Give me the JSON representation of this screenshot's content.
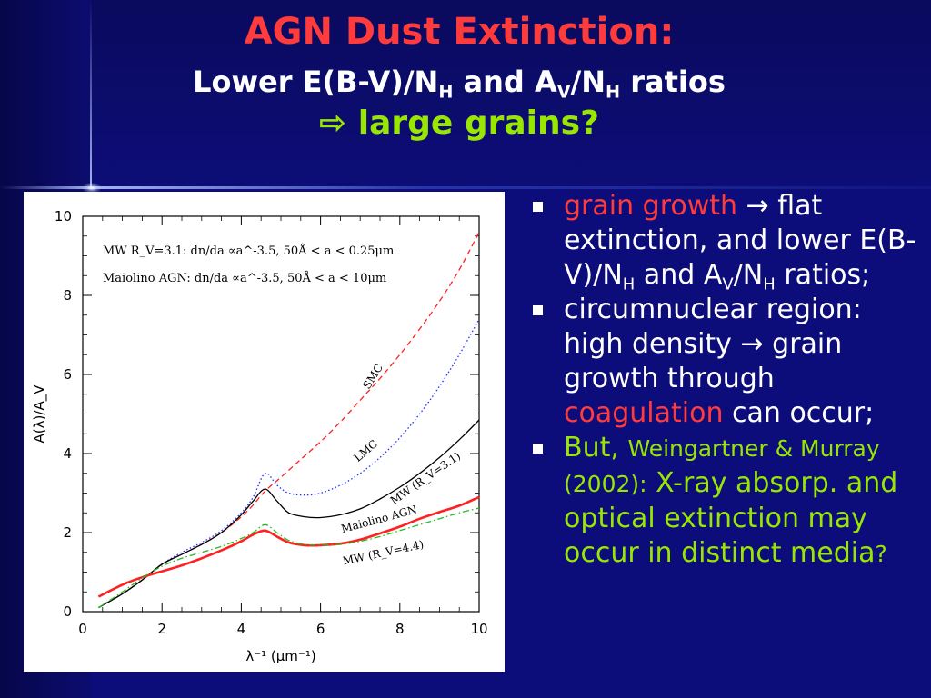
{
  "slide": {
    "title_line1": "AGN Dust Extinction:",
    "title_line2": {
      "a": "Lower E(B-V)/N",
      "a_sub": "H",
      "b": " and A",
      "b_sub": "V",
      "c": "/N",
      "c_sub": "H",
      "d": " ratios"
    },
    "title_line3": {
      "arrow": "⇨",
      "text": "large grains?"
    }
  },
  "bullets": [
    {
      "parts": [
        {
          "t": "grain growth",
          "c": "red"
        },
        {
          "t": " → flat extinction, and lower E(B-V)/N"
        },
        {
          "t": "H",
          "sub": true
        },
        {
          "t": " and A"
        },
        {
          "t": "V",
          "sub": true
        },
        {
          "t": "/N"
        },
        {
          "t": "H",
          "sub": true
        },
        {
          "t": " ratios;"
        }
      ]
    },
    {
      "parts": [
        {
          "t": "circumnuclear region: high density → grain growth through "
        },
        {
          "t": "coagulation",
          "c": "red"
        },
        {
          "t": " can occur;"
        }
      ]
    },
    {
      "parts": [
        {
          "t": "But, ",
          "c": "green"
        },
        {
          "t": "Weingartner & Murray (2002):",
          "c": "green",
          "small": true
        },
        {
          "t": " X-ray absorp. and optical extinction may occur in distinct media",
          "c": "green"
        },
        {
          "t": "?",
          "c": "green",
          "small": true
        }
      ]
    }
  ],
  "chart_data": {
    "type": "line",
    "xlabel": "λ⁻¹   (μm⁻¹)",
    "ylabel": "A(λ)/A_V",
    "xlim": [
      0,
      10
    ],
    "ylim": [
      0,
      10
    ],
    "xticks": [
      0,
      2,
      4,
      6,
      8,
      10
    ],
    "yticks": [
      0,
      2,
      4,
      6,
      8,
      10
    ],
    "legend": [
      "MW R_V=3.1: dn/da ∝a^-3.5, 50Å < a < 0.25μm",
      "Maiolino AGN: dn/da ∝a^-3.5, 50Å < a < 10μm"
    ],
    "series": [
      {
        "name": "SMC",
        "color": "#ff2020",
        "style": "dashed",
        "x": [
          0.4,
          1,
          1.5,
          2,
          2.5,
          3,
          3.5,
          4,
          4.3,
          4.6,
          5,
          5.5,
          6,
          6.5,
          7,
          7.5,
          8,
          8.5,
          9,
          9.5,
          10
        ],
        "y": [
          0.1,
          0.45,
          0.8,
          1.2,
          1.45,
          1.7,
          2.0,
          2.4,
          2.7,
          3.05,
          3.4,
          3.85,
          4.3,
          4.8,
          5.35,
          5.9,
          6.5,
          7.15,
          7.85,
          8.65,
          9.6
        ]
      },
      {
        "name": "LMC",
        "color": "#2030ff",
        "style": "dotted",
        "x": [
          0.4,
          1,
          1.5,
          2,
          2.5,
          3,
          3.5,
          4,
          4.3,
          4.6,
          4.9,
          5.2,
          5.6,
          6,
          6.5,
          7,
          7.5,
          8,
          8.5,
          9,
          9.5,
          10
        ],
        "y": [
          0.1,
          0.45,
          0.8,
          1.2,
          1.5,
          1.75,
          2.05,
          2.5,
          2.9,
          3.5,
          3.2,
          3.0,
          2.95,
          3.0,
          3.2,
          3.5,
          3.9,
          4.4,
          5.0,
          5.7,
          6.5,
          7.4
        ]
      },
      {
        "name": "MW (R_V=3.1)",
        "color": "#000000",
        "style": "solid",
        "x": [
          0.4,
          1,
          1.5,
          2,
          2.5,
          3,
          3.5,
          4,
          4.3,
          4.6,
          4.9,
          5.2,
          5.6,
          6,
          6.5,
          7,
          7.5,
          8,
          8.5,
          9,
          9.5,
          10
        ],
        "y": [
          0.1,
          0.45,
          0.8,
          1.2,
          1.45,
          1.7,
          2.0,
          2.45,
          2.8,
          3.1,
          2.8,
          2.5,
          2.4,
          2.38,
          2.45,
          2.6,
          2.85,
          3.15,
          3.5,
          3.9,
          4.35,
          4.85
        ]
      },
      {
        "name": "Maiolino AGN",
        "color": "#ff2020",
        "style": "solid",
        "x": [
          0.4,
          1,
          1.5,
          2,
          2.5,
          3,
          3.5,
          4,
          4.3,
          4.6,
          4.9,
          5.2,
          5.6,
          6,
          6.5,
          7,
          7.5,
          8,
          8.5,
          9,
          9.5,
          10
        ],
        "y": [
          0.38,
          0.68,
          0.87,
          1.02,
          1.17,
          1.35,
          1.55,
          1.78,
          1.95,
          2.05,
          1.9,
          1.75,
          1.68,
          1.68,
          1.72,
          1.82,
          1.98,
          2.15,
          2.35,
          2.52,
          2.68,
          2.9
        ]
      },
      {
        "name": "MW (R_V=4.4)",
        "color": "#22bb22",
        "style": "dashdot",
        "x": [
          0.4,
          1,
          1.5,
          2,
          2.5,
          3,
          3.5,
          4,
          4.3,
          4.6,
          4.9,
          5.2,
          5.6,
          6,
          6.5,
          7,
          7.5,
          8,
          8.5,
          9,
          9.5,
          10
        ],
        "y": [
          0.1,
          0.5,
          0.85,
          1.15,
          1.35,
          1.5,
          1.65,
          1.85,
          2.0,
          2.2,
          2.0,
          1.8,
          1.7,
          1.68,
          1.7,
          1.78,
          1.9,
          2.05,
          2.2,
          2.35,
          2.5,
          2.62
        ]
      }
    ],
    "curve_labels": [
      {
        "text": "SMC",
        "x": 7.4,
        "y": 5.9,
        "angle": -58
      },
      {
        "text": "LMC",
        "x": 7.2,
        "y": 4.0,
        "angle": -40
      },
      {
        "text": "MW (R_V=3.1)",
        "x": 8.7,
        "y": 3.3,
        "angle": -35
      },
      {
        "text": "Maiolino AGN",
        "x": 7.5,
        "y": 2.25,
        "angle": -15
      },
      {
        "text": "MW (R_V=4.4)",
        "x": 7.6,
        "y": 1.4,
        "angle": -12
      }
    ]
  }
}
